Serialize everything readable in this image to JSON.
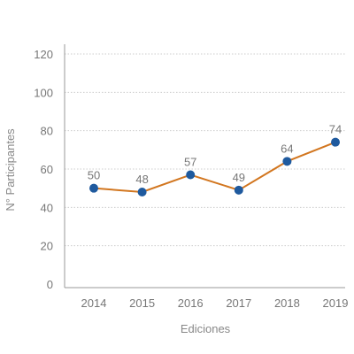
{
  "chart_data": {
    "type": "line",
    "categories": [
      "2014",
      "2015",
      "2016",
      "2017",
      "2018",
      "2019"
    ],
    "series": [
      {
        "values": [
          50,
          48,
          57,
          49,
          64,
          74
        ]
      }
    ],
    "data_labels": [
      "50",
      "48",
      "57",
      "49",
      "64",
      "74"
    ],
    "xlabel": "Ediciones",
    "ylabel": "N° Participantes",
    "ylim": [
      0,
      120
    ],
    "yticks": [
      0,
      20,
      40,
      60,
      80,
      100,
      120
    ],
    "grid": true,
    "line_color": "#d2761f",
    "marker_color": "#1f5a9e",
    "grid_color": "#cccccc",
    "axis_color": "#999999"
  }
}
